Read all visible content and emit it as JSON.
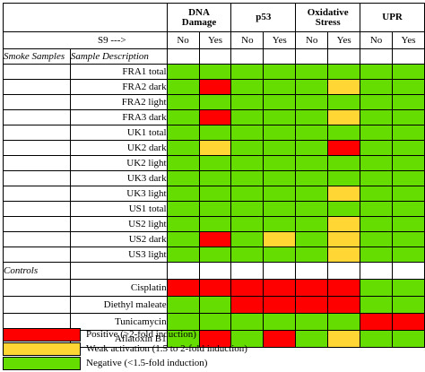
{
  "colors": {
    "positive": "#ff0000",
    "weak": "#ffd633",
    "negative": "#66dd00"
  },
  "header": {
    "groups": [
      "DNA\nDamage",
      "p53",
      "Oxidative\nStress",
      "UPR"
    ],
    "s9_label": "S9 --->",
    "subcols": [
      "No",
      "Yes",
      "No",
      "Yes",
      "No",
      "Yes",
      "No",
      "Yes"
    ],
    "col_smoke": "Smoke Samples",
    "col_desc": "Sample Description"
  },
  "smoke_rows": [
    {
      "label": "FRA1 total",
      "cells": [
        "G",
        "G",
        "G",
        "G",
        "G",
        "G",
        "G",
        "G"
      ]
    },
    {
      "label": "FRA2 dark",
      "cells": [
        "G",
        "R",
        "G",
        "G",
        "G",
        "Y",
        "G",
        "G"
      ]
    },
    {
      "label": "FRA2 light",
      "cells": [
        "G",
        "G",
        "G",
        "G",
        "G",
        "G",
        "G",
        "G"
      ]
    },
    {
      "label": "FRA3 dark",
      "cells": [
        "G",
        "R",
        "G",
        "G",
        "G",
        "Y",
        "G",
        "G"
      ]
    },
    {
      "label": "UK1 total",
      "cells": [
        "G",
        "G",
        "G",
        "G",
        "G",
        "G",
        "G",
        "G"
      ]
    },
    {
      "label": "UK2 dark",
      "cells": [
        "G",
        "Y",
        "G",
        "G",
        "G",
        "R",
        "G",
        "G"
      ]
    },
    {
      "label": "UK2 light",
      "cells": [
        "G",
        "G",
        "G",
        "G",
        "G",
        "G",
        "G",
        "G"
      ]
    },
    {
      "label": "UK3 dark",
      "cells": [
        "G",
        "G",
        "G",
        "G",
        "G",
        "G",
        "G",
        "G"
      ]
    },
    {
      "label": "UK3 light",
      "cells": [
        "G",
        "G",
        "G",
        "G",
        "G",
        "Y",
        "G",
        "G"
      ]
    },
    {
      "label": "US1 total",
      "cells": [
        "G",
        "G",
        "G",
        "G",
        "G",
        "G",
        "G",
        "G"
      ]
    },
    {
      "label": "US2 light",
      "cells": [
        "G",
        "G",
        "G",
        "G",
        "G",
        "Y",
        "G",
        "G"
      ]
    },
    {
      "label": "US2 dark",
      "cells": [
        "G",
        "R",
        "G",
        "Y",
        "G",
        "Y",
        "G",
        "G"
      ]
    },
    {
      "label": "US3 light",
      "cells": [
        "G",
        "G",
        "G",
        "G",
        "G",
        "Y",
        "G",
        "G"
      ]
    }
  ],
  "controls_label": "Controls",
  "control_rows": [
    {
      "label": "Cisplatin",
      "cells": [
        "R",
        "R",
        "R",
        "R",
        "R",
        "R",
        "G",
        "G"
      ]
    },
    {
      "label": "Diethyl maleate",
      "cells": [
        "G",
        "G",
        "R",
        "R",
        "R",
        "R",
        "G",
        "G"
      ]
    },
    {
      "label": "Tunicamycin",
      "cells": [
        "G",
        "G",
        "G",
        "G",
        "G",
        "G",
        "R",
        "R"
      ]
    },
    {
      "label": "Aflatoxin B1",
      "cells": [
        "G",
        "R",
        "G",
        "R",
        "G",
        "Y",
        "G",
        "G"
      ]
    }
  ],
  "legend": [
    {
      "key": "R",
      "label": "Positive (>2-fold induction)"
    },
    {
      "key": "Y",
      "label": "Weak activation (1.5 to 2-fold induction)"
    },
    {
      "key": "G",
      "label": "Negative (<1.5-fold induction)"
    }
  ]
}
